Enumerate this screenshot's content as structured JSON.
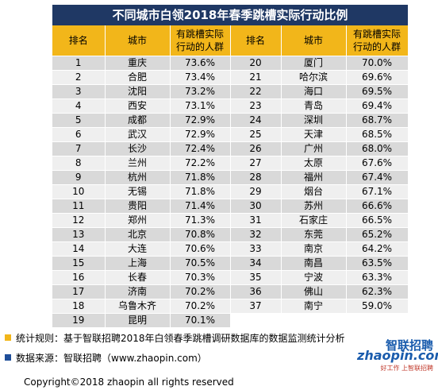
{
  "title": "不同城市白领2018年春季跳槽实际行动比例",
  "headers": {
    "rank": "排名",
    "city": "城市",
    "ratio": "有跳槽实际\n行动的人群"
  },
  "rows": [
    [
      "1",
      "重庆",
      "73.6%",
      "20",
      "厦门",
      "70.0%"
    ],
    [
      "2",
      "合肥",
      "73.4%",
      "21",
      "哈尔滨",
      "69.6%"
    ],
    [
      "3",
      "沈阳",
      "73.2%",
      "22",
      "海口",
      "69.5%"
    ],
    [
      "4",
      "西安",
      "73.1%",
      "23",
      "青岛",
      "69.4%"
    ],
    [
      "5",
      "成都",
      "72.9%",
      "24",
      "深圳",
      "68.7%"
    ],
    [
      "6",
      "武汉",
      "72.9%",
      "25",
      "天津",
      "68.5%"
    ],
    [
      "7",
      "长沙",
      "72.4%",
      "26",
      "广州",
      "68.0%"
    ],
    [
      "8",
      "兰州",
      "72.2%",
      "27",
      "太原",
      "67.6%"
    ],
    [
      "9",
      "杭州",
      "71.8%",
      "28",
      "福州",
      "67.4%"
    ],
    [
      "10",
      "无锡",
      "71.8%",
      "29",
      "烟台",
      "67.1%"
    ],
    [
      "11",
      "贵阳",
      "71.4%",
      "30",
      "苏州",
      "66.6%"
    ],
    [
      "12",
      "郑州",
      "71.3%",
      "31",
      "石家庄",
      "66.5%"
    ],
    [
      "13",
      "北京",
      "70.8%",
      "32",
      "东莞",
      "65.2%"
    ],
    [
      "14",
      "大连",
      "70.6%",
      "33",
      "南京",
      "64.2%"
    ],
    [
      "15",
      "上海",
      "70.5%",
      "34",
      "南昌",
      "63.5%"
    ],
    [
      "16",
      "长春",
      "70.3%",
      "35",
      "宁波",
      "63.3%"
    ],
    [
      "17",
      "济南",
      "70.2%",
      "36",
      "佛山",
      "62.3%"
    ],
    [
      "18",
      "乌鲁木齐",
      "70.2%",
      "37",
      "南宁",
      "59.0%"
    ],
    [
      "19",
      "昆明",
      "70.1%",
      "",
      "",
      ""
    ]
  ],
  "notes": {
    "stat_rule": "统计规则：基于智联招聘2018年白领春季跳槽调研数据库的数据监测统计分析",
    "data_source": "数据来源：智联招聘（www.zhaopin.com）"
  },
  "logo": {
    "cn": "智联招聘",
    "en": "zhaopin.com",
    "tagline": "好工作 上智联招聘"
  },
  "copyright": "Copyright©2018 zhaopin all rights reserved",
  "colors": {
    "title_bg": "#1f3864",
    "header_bg": "#f2b61a",
    "row_dark": "#d9d9d9",
    "row_light": "#efefef",
    "bullet_yellow": "#f2b61a",
    "bullet_blue": "#1f4e99",
    "brand_blue": "#1a5cad"
  }
}
